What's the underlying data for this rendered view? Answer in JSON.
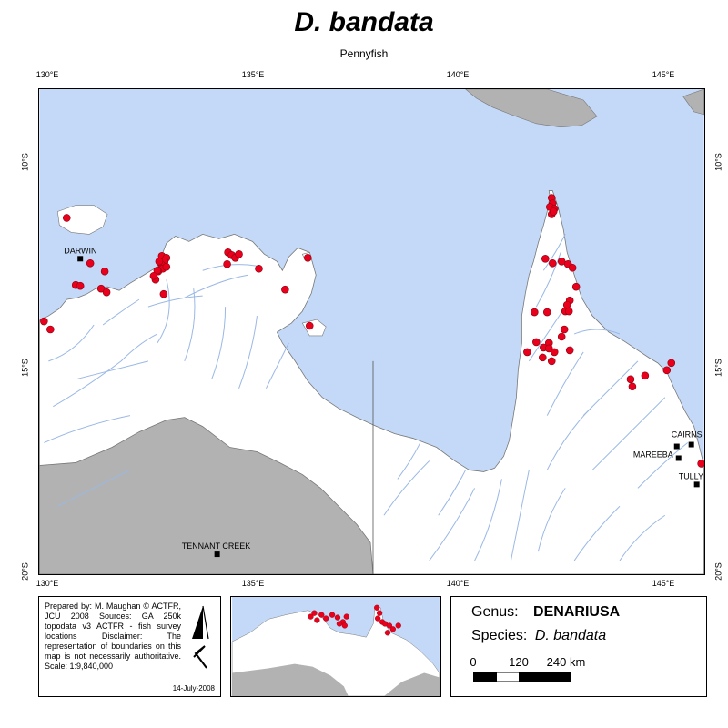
{
  "title": "D. bandata",
  "subtitle": "Pennyfish",
  "axes": {
    "longitude_ticks": [
      "130°E",
      "135°E",
      "140°E",
      "145°E"
    ],
    "latitude_ticks": [
      "10°S",
      "15°S",
      "20°S"
    ]
  },
  "places": [
    {
      "id": "darwin",
      "label": "DARWIN"
    },
    {
      "id": "tennant",
      "label": "TENNANT CREEK"
    },
    {
      "id": "cairns",
      "label": "CAIRNS"
    },
    {
      "id": "mareeba",
      "label": "MAREEBA"
    },
    {
      "id": "tully",
      "label": "TULLY"
    }
  ],
  "credits": {
    "text": "Prepared by: M. Maughan © ACTFR, JCU 2008 Sources: GA 250k topodata v3 ACTFR - fish survey locations Disclaimer: The representation of boundaries on this map is not necessarily authoritative. Scale: 1:9,840,000",
    "date": "14-July-2008"
  },
  "genus_panel": {
    "genus_label": "Genus:",
    "genus_value": "DENARIUSA",
    "species_label": "Species:",
    "species_value": "D. bandata",
    "scale_labels": [
      "0",
      "120",
      "240 km"
    ]
  },
  "colors": {
    "sea": "#c4d9f7",
    "land": "#ffffff",
    "outside": "#b2b2b2",
    "rivers": "#9ab8e6",
    "records": "#e8001c"
  },
  "records_count_visible": 70
}
